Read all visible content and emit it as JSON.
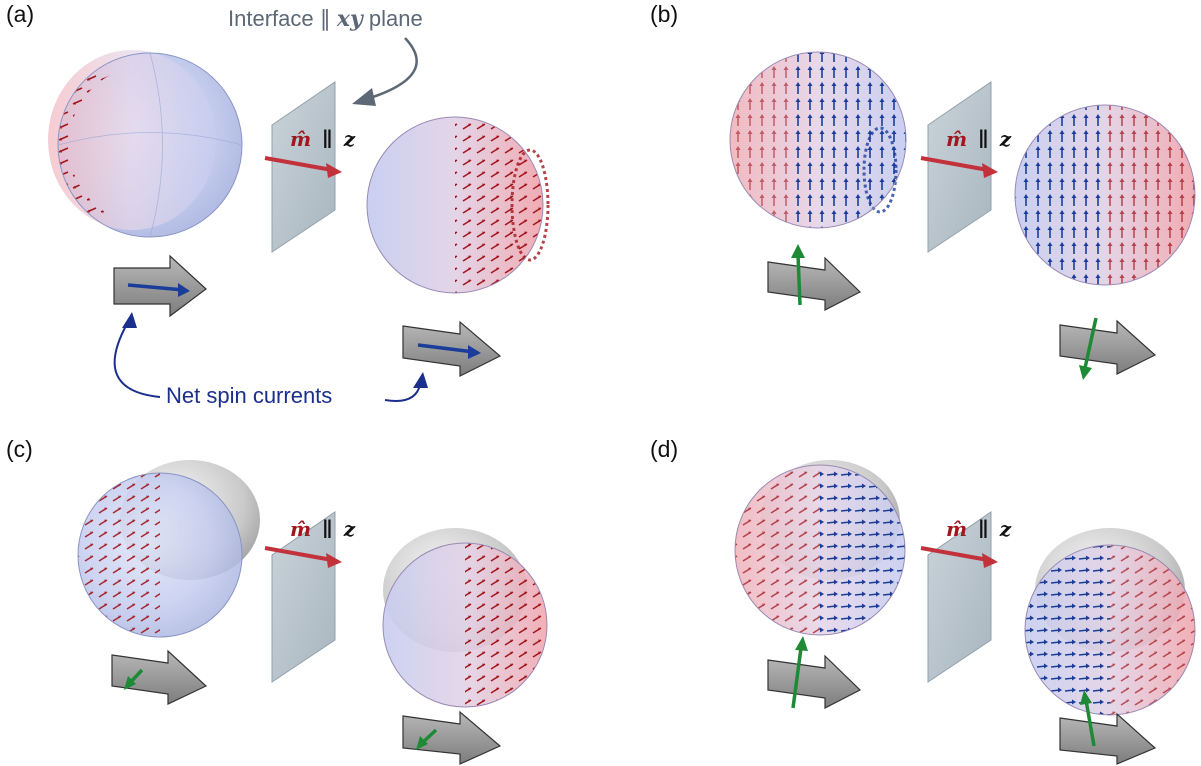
{
  "panels": [
    {
      "id": "a",
      "label": "(a)"
    },
    {
      "id": "b",
      "label": "(b)"
    },
    {
      "id": "c",
      "label": "(c)"
    },
    {
      "id": "d",
      "label": "(d)"
    }
  ],
  "annotations": {
    "interface_prefix": "Interface ∥ ",
    "interface_math": "xy",
    "interface_suffix": " plane",
    "net_spin_currents": "Net spin currents"
  },
  "magnetization": {
    "m_symbol": "m̂",
    "parallel": "∥",
    "axis": "z"
  },
  "colors": {
    "red_arrow": "#a3161e",
    "blue_arrow": "#1a3d9a",
    "green_arrow": "#1f8a35",
    "sphere_blue": "#c7cff0",
    "sphere_red": "#ef9fa8",
    "cap_gray": "#8f8f8f",
    "plane": "#b7c3cc",
    "block_arrow": "#9a9a9a",
    "annotation_gray": "#5d6877",
    "annotation_blue": "#1b2f8c"
  }
}
